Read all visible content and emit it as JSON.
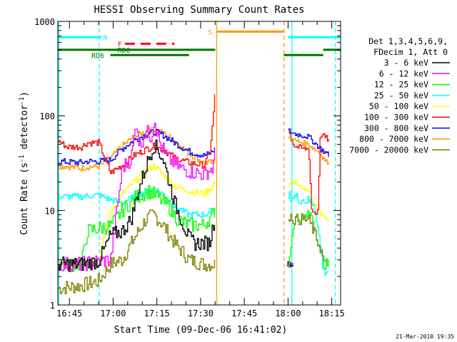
{
  "chart_data": {
    "type": "line",
    "title": "HESSI Observing Summary Count Rates",
    "xlabel": "Start Time (09-Dec-06 16:41:02)",
    "ylabel_main": "Count Rate (s",
    "ylabel_sup1": "-1",
    "ylabel_mid": " detector",
    "ylabel_sup2": "-1",
    "ylabel_end": ")",
    "yscale": "log",
    "ylim": [
      1,
      1000
    ],
    "xlim_minutes": [
      0,
      97
    ],
    "x_tick_labels": [
      "16:45",
      "17:00",
      "17:15",
      "17:30",
      "17:45",
      "18:00",
      "18:15"
    ],
    "x_tick_minutes": [
      3.97,
      18.97,
      33.97,
      48.97,
      63.97,
      78.97,
      93.97
    ],
    "y_tick_labels": [
      "1",
      "10",
      "100",
      "1000"
    ],
    "y_tick_values": [
      1,
      10,
      100,
      1000
    ],
    "timestamp": "21-Mar-2010 19:35",
    "legend": {
      "header1": "Det 1,3,4,5,6,9,",
      "header2": "FDecim 1, Att 0",
      "placement": "right"
    },
    "series": [
      {
        "name": "3 - 6 keV",
        "color": "#000000",
        "values": [
          [
            0,
            2.7
          ],
          [
            8,
            2.7
          ],
          [
            14,
            2.9
          ],
          [
            18,
            5.5
          ],
          [
            22,
            6
          ],
          [
            25,
            8
          ],
          [
            28,
            18
          ],
          [
            31,
            35
          ],
          [
            33,
            50
          ],
          [
            36,
            35
          ],
          [
            40,
            12
          ],
          [
            43,
            7
          ],
          [
            45,
            5
          ],
          [
            47,
            4.5
          ],
          [
            49,
            4.5
          ],
          [
            52,
            4.5
          ],
          [
            53,
            6.5
          ],
          [
            54,
            9
          ]
        ]
      },
      {
        "name": "6 - 12 keV",
        "color": "#ff00ff",
        "values": [
          [
            0,
            2.7
          ],
          [
            8,
            2.7
          ],
          [
            14,
            2.9
          ],
          [
            18,
            3
          ],
          [
            22,
            28
          ],
          [
            25,
            35
          ],
          [
            27,
            90
          ],
          [
            28,
            45
          ],
          [
            30,
            70
          ],
          [
            32,
            60
          ],
          [
            33,
            95
          ],
          [
            35,
            50
          ],
          [
            38,
            35
          ],
          [
            42,
            28
          ],
          [
            45,
            26
          ],
          [
            50,
            24
          ],
          [
            53,
            28
          ],
          [
            54,
            40
          ]
        ]
      },
      {
        "name": "12 - 25 keV",
        "color": "#00ff00",
        "values": [
          [
            0,
            2.7
          ],
          [
            8,
            2.7
          ],
          [
            10,
            6
          ],
          [
            14,
            6.5
          ],
          [
            18,
            6.8
          ],
          [
            22,
            10
          ],
          [
            27,
            14
          ],
          [
            31,
            16
          ],
          [
            34,
            14
          ],
          [
            38,
            11
          ],
          [
            41,
            8
          ],
          [
            45,
            7
          ],
          [
            50,
            7
          ],
          [
            53,
            9
          ],
          [
            54,
            10
          ]
        ]
      },
      {
        "name": "25 - 50 keV",
        "color": "#00ffff",
        "values": [
          [
            0,
            14
          ],
          [
            8,
            14
          ],
          [
            14,
            14.5
          ],
          [
            18,
            13
          ],
          [
            22,
            12
          ],
          [
            26,
            14
          ],
          [
            30,
            16
          ],
          [
            33,
            17
          ],
          [
            36,
            15
          ],
          [
            40,
            11
          ],
          [
            45,
            9
          ],
          [
            50,
            9
          ],
          [
            53,
            10
          ],
          [
            54,
            11
          ]
        ]
      },
      {
        "name": "50 - 100 keV",
        "color": "#ffff00",
        "values": [
          [
            0,
            2.7
          ],
          [
            8,
            2.7
          ],
          [
            14,
            3
          ],
          [
            18,
            10
          ],
          [
            22,
            15
          ],
          [
            26,
            20
          ],
          [
            30,
            26
          ],
          [
            33,
            30
          ],
          [
            36,
            24
          ],
          [
            40,
            18
          ],
          [
            45,
            16
          ],
          [
            50,
            15
          ],
          [
            53,
            18
          ],
          [
            54,
            22
          ]
        ]
      },
      {
        "name": "100 - 300 keV",
        "color": "#ff0000",
        "values": [
          [
            0,
            55
          ],
          [
            3,
            47
          ],
          [
            8,
            47
          ],
          [
            10,
            52
          ],
          [
            14,
            52
          ],
          [
            18,
            25
          ],
          [
            22,
            30
          ],
          [
            26,
            38
          ],
          [
            30,
            44
          ],
          [
            33,
            48
          ],
          [
            36,
            44
          ],
          [
            40,
            36
          ],
          [
            45,
            32
          ],
          [
            50,
            30
          ],
          [
            52,
            40
          ],
          [
            53,
            80
          ],
          [
            54,
            200
          ]
        ]
      },
      {
        "name": "300 - 800 keV",
        "color": "#0000ff",
        "values": [
          [
            0,
            33
          ],
          [
            8,
            32
          ],
          [
            10,
            33
          ],
          [
            14,
            33
          ],
          [
            18,
            34
          ],
          [
            22,
            45
          ],
          [
            26,
            55
          ],
          [
            30,
            63
          ],
          [
            33,
            68
          ],
          [
            36,
            63
          ],
          [
            40,
            52
          ],
          [
            45,
            42
          ],
          [
            50,
            38
          ],
          [
            52,
            40
          ],
          [
            54,
            45
          ]
        ]
      },
      {
        "name": "800 - 7000 keV",
        "color": "#ff9900",
        "values": [
          [
            0,
            30
          ],
          [
            8,
            28
          ],
          [
            10,
            29
          ],
          [
            14,
            29
          ],
          [
            18,
            36
          ],
          [
            22,
            48
          ],
          [
            26,
            60
          ],
          [
            30,
            68
          ],
          [
            33,
            72
          ],
          [
            36,
            66
          ],
          [
            40,
            54
          ],
          [
            45,
            40
          ],
          [
            50,
            32
          ],
          [
            52,
            32
          ],
          [
            54,
            32
          ]
        ]
      },
      {
        "name": "7000 - 20000 keV",
        "color": "#808000",
        "values": [
          [
            0,
            1.5
          ],
          [
            8,
            1.6
          ],
          [
            14,
            1.8
          ],
          [
            18,
            2.7
          ],
          [
            22,
            3
          ],
          [
            26,
            5
          ],
          [
            30,
            8
          ],
          [
            33,
            9
          ],
          [
            36,
            7
          ],
          [
            40,
            4.5
          ],
          [
            45,
            3
          ],
          [
            50,
            2.7
          ],
          [
            54,
            2.7
          ]
        ]
      }
    ],
    "series_after": [
      {
        "name": "3 - 6 keV",
        "values": [
          [
            78.5,
            2.7
          ],
          [
            81,
            2.7
          ]
        ]
      },
      {
        "name": "6 - 12 keV",
        "values": [
          [
            78.5,
            2.7
          ],
          [
            81,
            2.7
          ]
        ]
      },
      {
        "name": "12 - 25 keV",
        "values": [
          [
            79,
            2.7
          ],
          [
            81,
            8
          ],
          [
            84,
            8.5
          ],
          [
            87,
            9
          ],
          [
            91,
            2.7
          ],
          [
            93,
            2.7
          ]
        ]
      },
      {
        "name": "25 - 50 keV",
        "values": [
          [
            79,
            14
          ],
          [
            81,
            14
          ],
          [
            84,
            13
          ],
          [
            88,
            12
          ],
          [
            91,
            2.3
          ],
          [
            93,
            2.3
          ]
        ]
      },
      {
        "name": "50 - 100 keV",
        "values": [
          [
            79,
            18
          ],
          [
            81,
            20
          ],
          [
            86,
            16
          ],
          [
            90,
            9
          ],
          [
            93,
            8
          ]
        ]
      },
      {
        "name": "100 - 300 keV",
        "values": [
          [
            79,
            70
          ],
          [
            81,
            48
          ],
          [
            84,
            45
          ],
          [
            86,
            45
          ],
          [
            87,
            10
          ],
          [
            89,
            9
          ],
          [
            90,
            65
          ],
          [
            93,
            55
          ]
        ]
      },
      {
        "name": "300 - 800 keV",
        "values": [
          [
            79,
            70
          ],
          [
            81,
            65
          ],
          [
            86,
            60
          ],
          [
            90,
            45
          ],
          [
            93,
            38
          ]
        ]
      },
      {
        "name": "800 - 7000 keV",
        "values": [
          [
            79,
            58
          ],
          [
            81,
            55
          ],
          [
            86,
            50
          ],
          [
            90,
            40
          ],
          [
            93,
            30
          ]
        ]
      },
      {
        "name": "7000 - 20000 keV",
        "values": [
          [
            79,
            9
          ],
          [
            81,
            8
          ],
          [
            86,
            8
          ],
          [
            90,
            4
          ],
          [
            92,
            2.3
          ]
        ]
      }
    ],
    "flags": [
      {
        "label": "N",
        "color": "#00ffff",
        "start": 0,
        "end": 15,
        "level": 680,
        "label_at": 15.5
      },
      {
        "label": "F",
        "color": "#ff0000",
        "start": 23,
        "end": 40,
        "level": 580,
        "label_at": 20.5,
        "dashed": true
      },
      {
        "label": "RD0",
        "color": "#007700",
        "start": 0,
        "end": 54,
        "level": 500,
        "label_at": 20.5
      },
      {
        "label": "RD6",
        "color": "#007700",
        "start": 18,
        "end": 45,
        "level": 440,
        "label_at": 11.5
      },
      {
        "label": "S",
        "color": "#ff9900",
        "start": 54.5,
        "end": 77.5,
        "level": 780,
        "label_at": 51.5
      }
    ],
    "flags_after": [
      {
        "color": "#00ffff",
        "start": 79,
        "end": 97,
        "level": 680
      },
      {
        "color": "#007700",
        "start": 77.5,
        "end": 91,
        "level": 440
      },
      {
        "color": "#007700",
        "start": 91,
        "end": 97,
        "level": 500
      }
    ],
    "vlines": [
      {
        "x": 0.3,
        "color": "#00ffff",
        "dashed": false
      },
      {
        "x": 14.2,
        "color": "#00ffff",
        "dashed": true
      },
      {
        "x": 54.5,
        "color": "#ff9900",
        "dashed": false
      },
      {
        "x": 77.6,
        "color": "#ff9900",
        "dashed": true
      },
      {
        "x": 80.3,
        "color": "#00ffff",
        "dashed": false
      },
      {
        "x": 95.2,
        "color": "#00ffff",
        "dashed": true
      }
    ]
  }
}
